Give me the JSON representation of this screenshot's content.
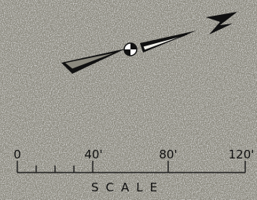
{
  "scale": {
    "labels": [
      "0",
      "40'",
      "80'",
      "120'"
    ],
    "title": "SCALE"
  }
}
